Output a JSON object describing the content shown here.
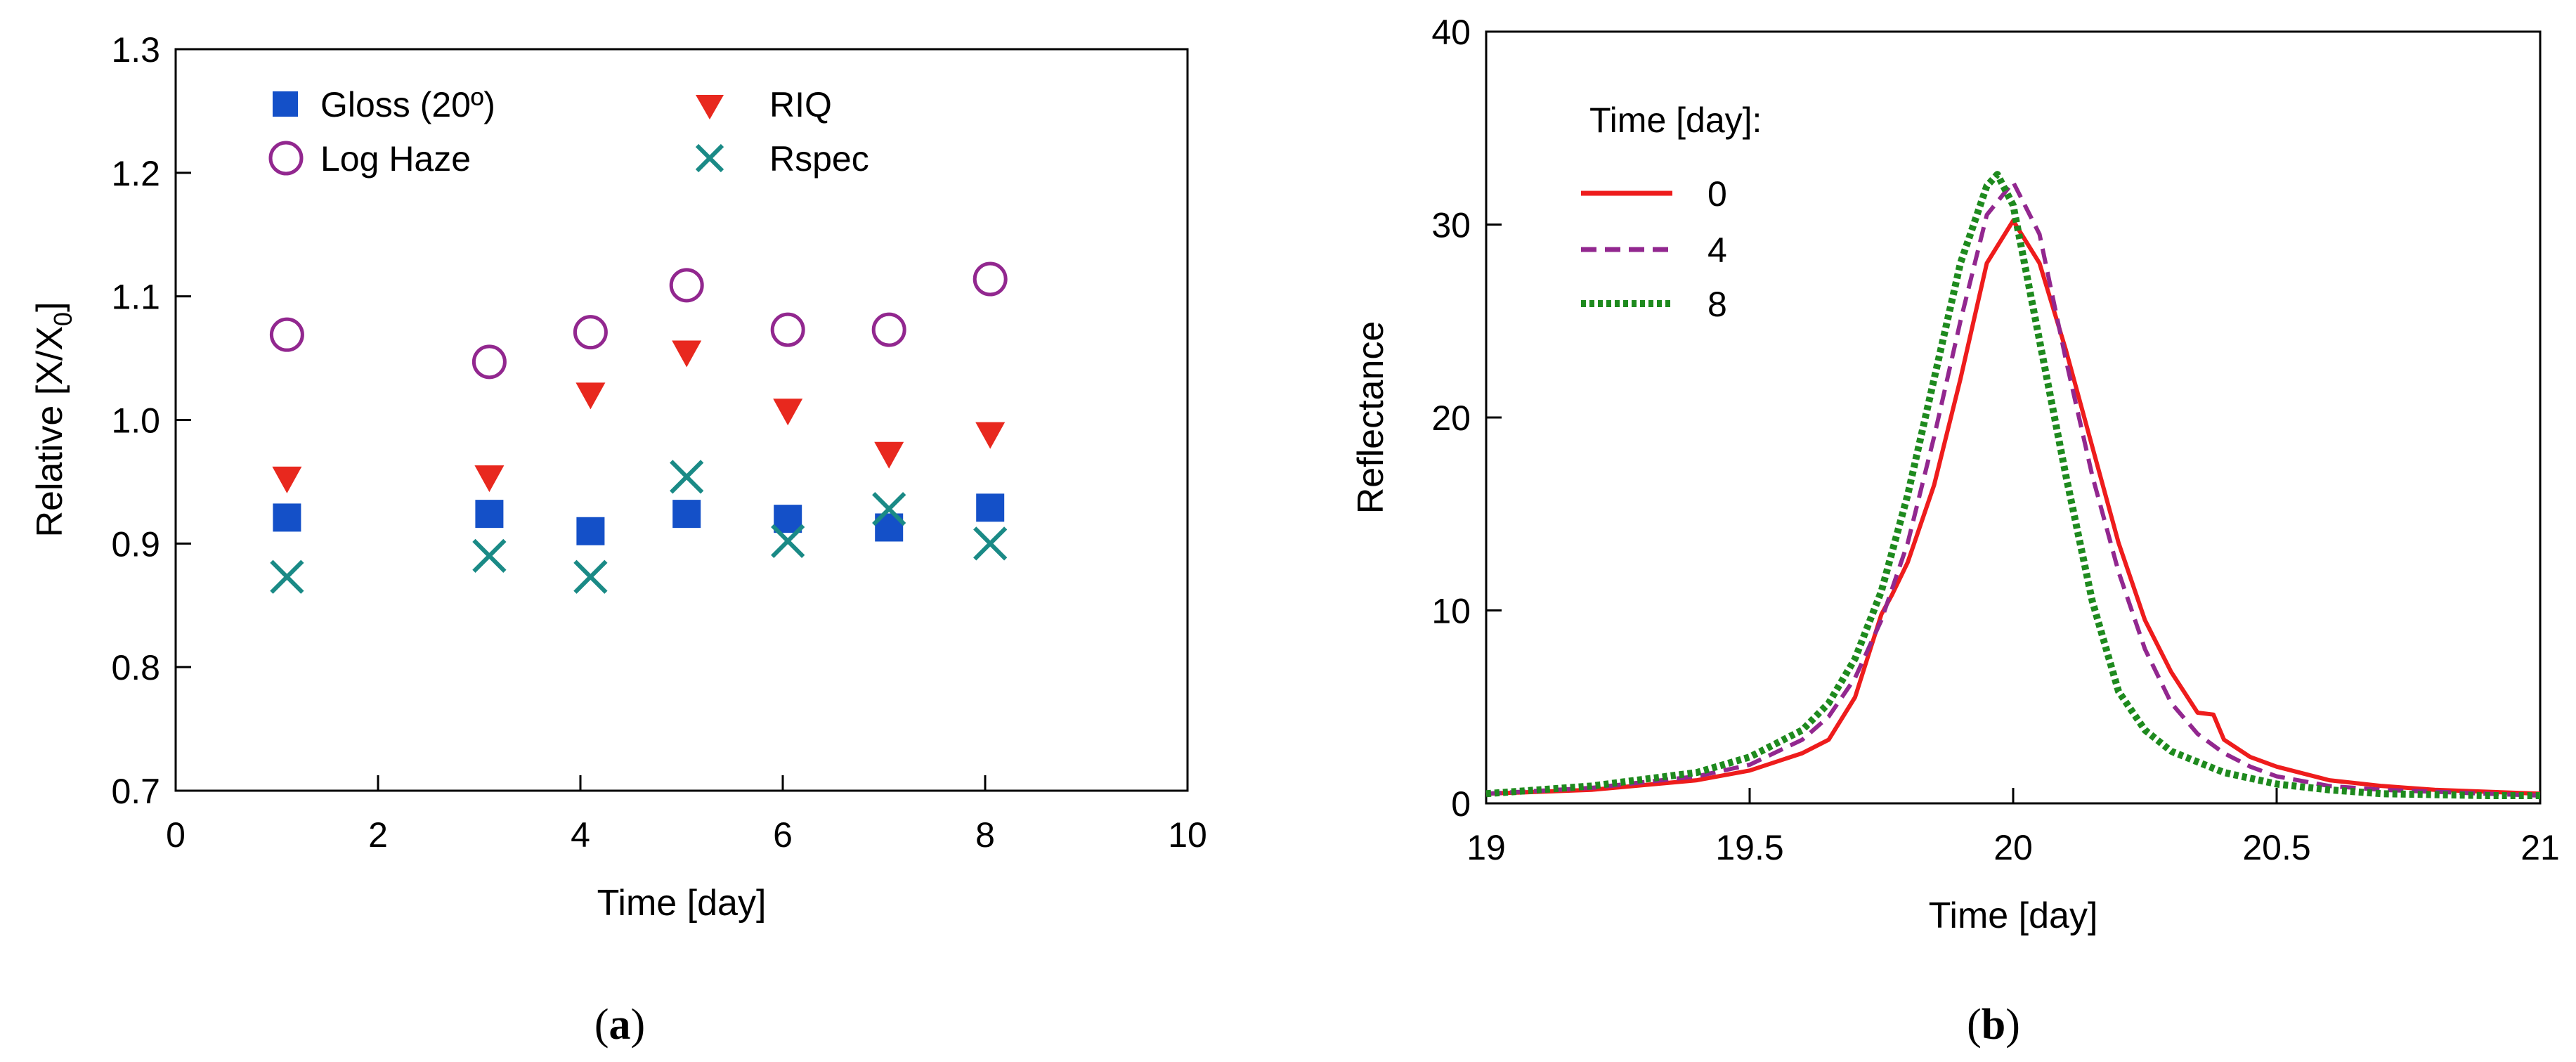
{
  "figure": {
    "caption_a": {
      "open": "(",
      "letter": "a",
      "close": ")"
    },
    "caption_b": {
      "open": "(",
      "letter": "b",
      "close": ")"
    }
  },
  "chart_data": [
    {
      "id": "a",
      "type": "scatter",
      "xlabel": "Time [day]",
      "ylabel": "Relative [X/X",
      "ylabel_sub": "0",
      "ylabel_close": "]",
      "xlim": [
        0,
        10
      ],
      "ylim": [
        0.7,
        1.3
      ],
      "xticks": [
        0,
        2,
        4,
        6,
        8,
        10
      ],
      "xtick_labels": [
        "0",
        "2",
        "4",
        "6",
        "8",
        "10"
      ],
      "yticks": [
        0.7,
        0.8,
        0.9,
        1.0,
        1.1,
        1.2,
        1.3
      ],
      "ytick_labels": [
        "0.7",
        "0.8",
        "0.9",
        "1.0",
        "1.1",
        "1.2",
        "1.3"
      ],
      "legend_position": "top-left",
      "series": [
        {
          "name": "Gloss (20º)",
          "marker": "square",
          "color": "#1450c8",
          "x": [
            1.1,
            3.1,
            4.1,
            5.05,
            6.05,
            7.05,
            8.05
          ],
          "y": [
            0.921,
            0.924,
            0.91,
            0.924,
            0.92,
            0.913,
            0.929
          ]
        },
        {
          "name": "RIQ",
          "marker": "triangle-down",
          "color": "#e8281e",
          "x": [
            1.1,
            3.1,
            4.1,
            5.05,
            6.05,
            7.05,
            8.05
          ],
          "y": [
            0.952,
            0.953,
            1.02,
            1.054,
            1.007,
            0.972,
            0.988
          ]
        },
        {
          "name": "Log Haze",
          "marker": "circle-open",
          "color": "#92278f",
          "x": [
            1.1,
            3.1,
            4.1,
            5.05,
            6.05,
            7.05,
            8.05
          ],
          "y": [
            1.069,
            1.047,
            1.071,
            1.109,
            1.073,
            1.073,
            1.114
          ]
        },
        {
          "name": "Rspec",
          "marker": "x",
          "color": "#1a8a86",
          "x": [
            1.1,
            3.1,
            4.1,
            5.05,
            6.05,
            7.05,
            8.05
          ],
          "y": [
            0.873,
            0.89,
            0.873,
            0.954,
            0.902,
            0.928,
            0.9
          ]
        }
      ]
    },
    {
      "id": "b",
      "type": "line",
      "xlabel": "Time [day]",
      "ylabel": "Reflectance",
      "xlim": [
        19,
        21
      ],
      "ylim": [
        0,
        40
      ],
      "xticks": [
        19,
        19.5,
        20,
        20.5,
        21
      ],
      "xtick_labels": [
        "19",
        "19.5",
        "20",
        "20.5",
        "21"
      ],
      "yticks": [
        0,
        10,
        20,
        30,
        40
      ],
      "ytick_labels": [
        "0",
        "10",
        "20",
        "30",
        "40"
      ],
      "legend_title": "Time [day]:",
      "legend_position": "top-left",
      "series": [
        {
          "name": "0",
          "style": "solid",
          "color": "#ee1c1c",
          "x": [
            19,
            19.2,
            19.4,
            19.5,
            19.6,
            19.65,
            19.7,
            19.75,
            19.77,
            19.8,
            19.85,
            19.9,
            19.95,
            20,
            20.05,
            20.1,
            20.15,
            20.2,
            20.25,
            20.3,
            20.35,
            20.38,
            20.4,
            20.45,
            20.5,
            20.6,
            20.7,
            20.8,
            20.9,
            21
          ],
          "y": [
            0.5,
            0.7,
            1.2,
            1.7,
            2.6,
            3.3,
            5.5,
            9.8,
            10.8,
            12.5,
            16.5,
            22,
            28,
            30.2,
            28,
            23.5,
            18.5,
            13.5,
            9.5,
            6.8,
            4.7,
            4.6,
            3.3,
            2.4,
            1.9,
            1.2,
            0.9,
            0.7,
            0.6,
            0.5
          ]
        },
        {
          "name": "4",
          "style": "dashed",
          "color": "#92278f",
          "x": [
            19,
            19.2,
            19.4,
            19.5,
            19.6,
            19.65,
            19.7,
            19.75,
            19.8,
            19.85,
            19.9,
            19.95,
            20,
            20.05,
            20.1,
            20.15,
            20.2,
            20.25,
            20.3,
            20.35,
            20.4,
            20.45,
            20.5,
            20.6,
            20.7,
            20.8,
            20.9,
            21
          ],
          "y": [
            0.5,
            0.8,
            1.4,
            2.0,
            3.3,
            4.5,
            6.5,
            9.5,
            13.5,
            19,
            25,
            30.5,
            32.2,
            29.5,
            23,
            17,
            12,
            8,
            5.2,
            3.6,
            2.6,
            1.9,
            1.4,
            0.9,
            0.7,
            0.6,
            0.5,
            0.4
          ]
        },
        {
          "name": "8",
          "style": "dotted",
          "color": "#1e8a1e",
          "x": [
            19,
            19.2,
            19.4,
            19.5,
            19.6,
            19.65,
            19.7,
            19.75,
            19.8,
            19.85,
            19.9,
            19.95,
            19.97,
            20,
            20.05,
            20.1,
            20.15,
            20.2,
            20.25,
            20.3,
            20.4,
            20.5,
            20.6,
            20.7,
            20.8,
            20.9,
            21
          ],
          "y": [
            0.5,
            0.9,
            1.6,
            2.4,
            3.8,
            5.2,
            7.5,
            11,
            16,
            22,
            28,
            32,
            32.6,
            31,
            24,
            17,
            10.5,
            5.8,
            3.8,
            2.7,
            1.6,
            1.0,
            0.7,
            0.5,
            0.45,
            0.4,
            0.4
          ]
        }
      ]
    }
  ]
}
